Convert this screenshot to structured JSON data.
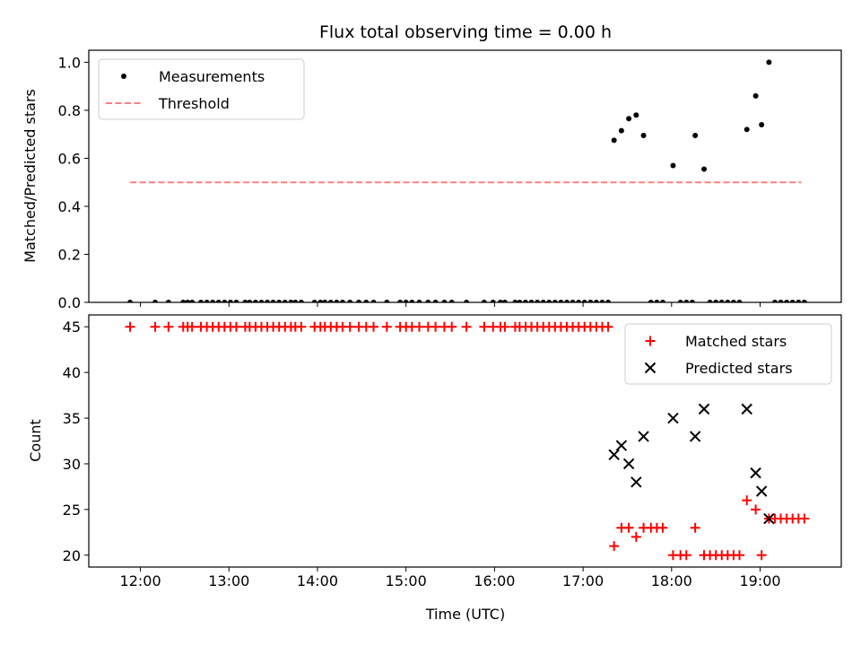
{
  "chart_data": [
    {
      "type": "scatter",
      "title": "Flux total observing time = 0.00 h",
      "xlabel": "",
      "ylabel": "Matched/Predicted stars",
      "xlim": [
        "11:25",
        "19:55"
      ],
      "ylim": [
        0,
        1.05
      ],
      "x_ticks": [
        "12:00",
        "13:00",
        "14:00",
        "15:00",
        "16:00",
        "17:00",
        "18:00",
        "19:00"
      ],
      "y_ticks": [
        "0.0",
        "0.2",
        "0.4",
        "0.6",
        "0.8",
        "1.0"
      ],
      "legend_position": "top-left",
      "series": [
        {
          "name": "Measurements",
          "marker": "dot",
          "color": "#000000",
          "points": [
            [
              "11:53",
              0
            ],
            [
              "12:10",
              0
            ],
            [
              "12:19",
              0
            ],
            [
              "12:29",
              0
            ],
            [
              "12:32",
              0
            ],
            [
              "12:35",
              0
            ],
            [
              "12:41",
              0
            ],
            [
              "12:45",
              0
            ],
            [
              "12:49",
              0
            ],
            [
              "12:53",
              0
            ],
            [
              "12:57",
              0
            ],
            [
              "13:01",
              0
            ],
            [
              "13:05",
              0
            ],
            [
              "13:11",
              0
            ],
            [
              "13:14",
              0
            ],
            [
              "13:18",
              0
            ],
            [
              "13:22",
              0
            ],
            [
              "13:26",
              0
            ],
            [
              "13:30",
              0
            ],
            [
              "13:34",
              0
            ],
            [
              "13:38",
              0
            ],
            [
              "13:42",
              0
            ],
            [
              "13:45",
              0
            ],
            [
              "13:49",
              0
            ],
            [
              "13:58",
              0
            ],
            [
              "14:02",
              0
            ],
            [
              "14:05",
              0
            ],
            [
              "14:09",
              0
            ],
            [
              "14:13",
              0
            ],
            [
              "14:17",
              0
            ],
            [
              "14:22",
              0
            ],
            [
              "14:28",
              0
            ],
            [
              "14:33",
              0
            ],
            [
              "14:38",
              0
            ],
            [
              "14:47",
              0
            ],
            [
              "14:56",
              0
            ],
            [
              "15:00",
              0
            ],
            [
              "15:04",
              0
            ],
            [
              "15:09",
              0
            ],
            [
              "15:15",
              0
            ],
            [
              "15:20",
              0
            ],
            [
              "15:26",
              0
            ],
            [
              "15:31",
              0
            ],
            [
              "15:41",
              0
            ],
            [
              "15:53",
              0
            ],
            [
              "15:59",
              0
            ],
            [
              "16:04",
              0
            ],
            [
              "16:07",
              0
            ],
            [
              "16:14",
              0
            ],
            [
              "16:17",
              0
            ],
            [
              "16:21",
              0
            ],
            [
              "16:25",
              0
            ],
            [
              "16:29",
              0
            ],
            [
              "16:33",
              0
            ],
            [
              "16:37",
              0
            ],
            [
              "16:41",
              0
            ],
            [
              "16:45",
              0
            ],
            [
              "16:49",
              0
            ],
            [
              "16:53",
              0
            ],
            [
              "16:57",
              0
            ],
            [
              "17:01",
              0
            ],
            [
              "17:05",
              0
            ],
            [
              "17:09",
              0
            ],
            [
              "17:13",
              0
            ],
            [
              "17:17",
              0
            ],
            [
              "17:21",
              0.675
            ],
            [
              "17:26",
              0.715
            ],
            [
              "17:31",
              0.765
            ],
            [
              "17:36",
              0.78
            ],
            [
              "17:41",
              0.695
            ],
            [
              "17:46",
              0
            ],
            [
              "17:50",
              0
            ],
            [
              "17:54",
              0
            ],
            [
              "18:01",
              0.57
            ],
            [
              "18:06",
              0
            ],
            [
              "18:10",
              0
            ],
            [
              "18:14",
              0
            ],
            [
              "18:16",
              0.695
            ],
            [
              "18:22",
              0.555
            ],
            [
              "18:26",
              0
            ],
            [
              "18:30",
              0
            ],
            [
              "18:34",
              0
            ],
            [
              "18:38",
              0
            ],
            [
              "18:42",
              0
            ],
            [
              "18:46",
              0
            ],
            [
              "18:51",
              0.72
            ],
            [
              "18:57",
              0.86
            ],
            [
              "19:01",
              0.74
            ],
            [
              "19:06",
              1.0
            ],
            [
              "19:10",
              0
            ],
            [
              "19:14",
              0
            ],
            [
              "19:18",
              0
            ],
            [
              "19:22",
              0
            ],
            [
              "19:26",
              0
            ],
            [
              "19:30",
              0
            ]
          ]
        },
        {
          "name": "Threshold",
          "marker": "dashed-line",
          "color": "#ff7f7f",
          "points": [
            [
              "11:53",
              0.5
            ],
            [
              "19:28",
              0.5
            ]
          ]
        }
      ]
    },
    {
      "type": "scatter",
      "title": "",
      "xlabel": "Time (UTC)",
      "ylabel": "Count",
      "xlim": [
        "11:25",
        "19:55"
      ],
      "ylim": [
        18.7,
        46.3
      ],
      "x_ticks": [
        "12:00",
        "13:00",
        "14:00",
        "15:00",
        "16:00",
        "17:00",
        "18:00",
        "19:00"
      ],
      "y_ticks": [
        "20",
        "25",
        "30",
        "35",
        "40",
        "45"
      ],
      "legend_position": "top-right",
      "series": [
        {
          "name": "Matched stars",
          "marker": "plus",
          "color": "#ff0000",
          "points": [
            [
              "11:53",
              45
            ],
            [
              "12:10",
              45
            ],
            [
              "12:19",
              45
            ],
            [
              "12:29",
              45
            ],
            [
              "12:32",
              45
            ],
            [
              "12:35",
              45
            ],
            [
              "12:41",
              45
            ],
            [
              "12:45",
              45
            ],
            [
              "12:49",
              45
            ],
            [
              "12:53",
              45
            ],
            [
              "12:57",
              45
            ],
            [
              "13:01",
              45
            ],
            [
              "13:05",
              45
            ],
            [
              "13:11",
              45
            ],
            [
              "13:14",
              45
            ],
            [
              "13:18",
              45
            ],
            [
              "13:22",
              45
            ],
            [
              "13:26",
              45
            ],
            [
              "13:30",
              45
            ],
            [
              "13:34",
              45
            ],
            [
              "13:38",
              45
            ],
            [
              "13:42",
              45
            ],
            [
              "13:45",
              45
            ],
            [
              "13:49",
              45
            ],
            [
              "13:58",
              45
            ],
            [
              "14:02",
              45
            ],
            [
              "14:05",
              45
            ],
            [
              "14:09",
              45
            ],
            [
              "14:13",
              45
            ],
            [
              "14:17",
              45
            ],
            [
              "14:22",
              45
            ],
            [
              "14:28",
              45
            ],
            [
              "14:33",
              45
            ],
            [
              "14:38",
              45
            ],
            [
              "14:47",
              45
            ],
            [
              "14:56",
              45
            ],
            [
              "15:00",
              45
            ],
            [
              "15:04",
              45
            ],
            [
              "15:09",
              45
            ],
            [
              "15:15",
              45
            ],
            [
              "15:20",
              45
            ],
            [
              "15:26",
              45
            ],
            [
              "15:31",
              45
            ],
            [
              "15:41",
              45
            ],
            [
              "15:53",
              45
            ],
            [
              "15:59",
              45
            ],
            [
              "16:04",
              45
            ],
            [
              "16:07",
              45
            ],
            [
              "16:14",
              45
            ],
            [
              "16:17",
              45
            ],
            [
              "16:21",
              45
            ],
            [
              "16:25",
              45
            ],
            [
              "16:29",
              45
            ],
            [
              "16:33",
              45
            ],
            [
              "16:37",
              45
            ],
            [
              "16:41",
              45
            ],
            [
              "16:45",
              45
            ],
            [
              "16:49",
              45
            ],
            [
              "16:53",
              45
            ],
            [
              "16:57",
              45
            ],
            [
              "17:01",
              45
            ],
            [
              "17:05",
              45
            ],
            [
              "17:09",
              45
            ],
            [
              "17:13",
              45
            ],
            [
              "17:17",
              45
            ],
            [
              "17:21",
              21
            ],
            [
              "17:26",
              23
            ],
            [
              "17:31",
              23
            ],
            [
              "17:36",
              22
            ],
            [
              "17:41",
              23
            ],
            [
              "17:46",
              23
            ],
            [
              "17:50",
              23
            ],
            [
              "17:54",
              23
            ],
            [
              "18:01",
              20
            ],
            [
              "18:06",
              20
            ],
            [
              "18:10",
              20
            ],
            [
              "18:16",
              23
            ],
            [
              "18:22",
              20
            ],
            [
              "18:26",
              20
            ],
            [
              "18:30",
              20
            ],
            [
              "18:34",
              20
            ],
            [
              "18:38",
              20
            ],
            [
              "18:42",
              20
            ],
            [
              "18:46",
              20
            ],
            [
              "18:51",
              26
            ],
            [
              "18:57",
              25
            ],
            [
              "19:01",
              20
            ],
            [
              "19:06",
              24
            ],
            [
              "19:10",
              24
            ],
            [
              "19:14",
              24
            ],
            [
              "19:18",
              24
            ],
            [
              "19:22",
              24
            ],
            [
              "19:26",
              24
            ],
            [
              "19:30",
              24
            ]
          ]
        },
        {
          "name": "Predicted stars",
          "marker": "x",
          "color": "#000000",
          "points": [
            [
              "17:21",
              31
            ],
            [
              "17:26",
              32
            ],
            [
              "17:31",
              30
            ],
            [
              "17:36",
              28
            ],
            [
              "17:41",
              33
            ],
            [
              "18:01",
              35
            ],
            [
              "18:16",
              33
            ],
            [
              "18:22",
              36
            ],
            [
              "18:51",
              36
            ],
            [
              "18:57",
              29
            ],
            [
              "19:01",
              27
            ],
            [
              "19:06",
              24
            ]
          ]
        }
      ]
    }
  ]
}
